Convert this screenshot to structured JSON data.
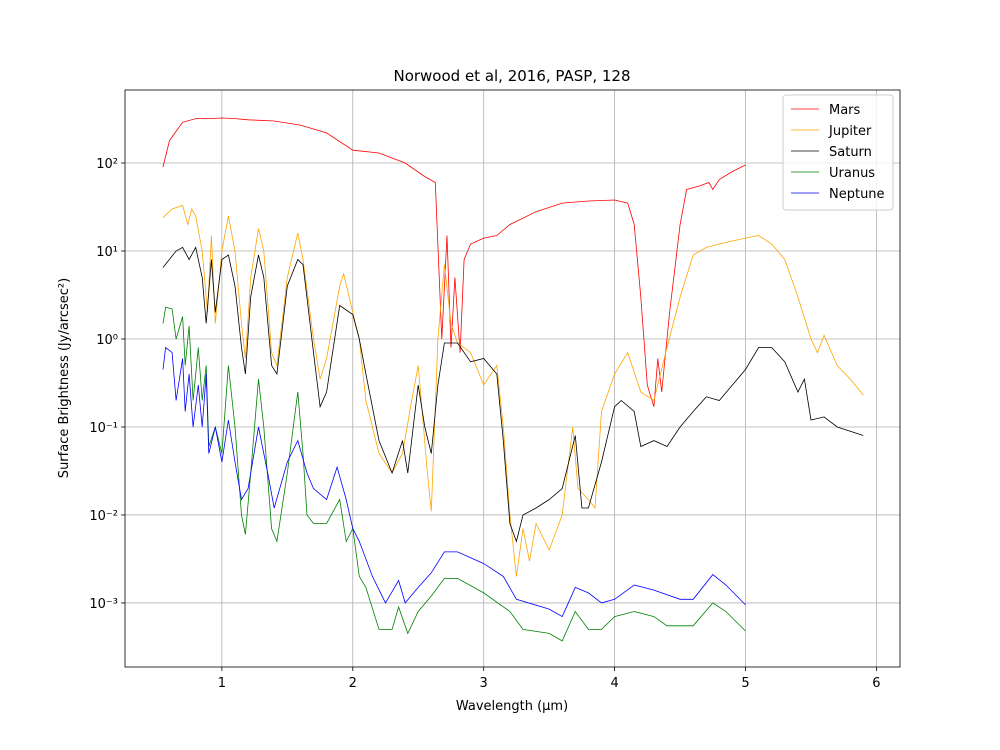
{
  "chart_data": {
    "type": "line",
    "title": "Norwood et al, 2016, PASP, 128",
    "xlabel": "Wavelength (μm)",
    "ylabel": "Surface Brightness (Jy/arcsec²)",
    "xlim": [
      0.26,
      6.18
    ],
    "xticks": [
      1,
      2,
      3,
      4,
      5,
      6
    ],
    "ylim": [
      0.000187,
      676
    ],
    "log_y": true,
    "yticks": [
      {
        "value": 0.001,
        "label": "10⁻³"
      },
      {
        "value": 0.01,
        "label": "10⁻²"
      },
      {
        "value": 0.1,
        "label": "10⁻¹"
      },
      {
        "value": 1,
        "label": "10⁰"
      },
      {
        "value": 10,
        "label": "10¹"
      },
      {
        "value": 100,
        "label": "10²"
      }
    ],
    "grid": true,
    "legend": "upper right",
    "series": [
      {
        "name": "Mars",
        "color": "#ff0000",
        "x": [
          0.55,
          0.6,
          0.7,
          0.8,
          0.9,
          1.0,
          1.1,
          1.2,
          1.4,
          1.6,
          1.8,
          2.0,
          2.2,
          2.4,
          2.55,
          2.63,
          2.68,
          2.72,
          2.75,
          2.78,
          2.82,
          2.85,
          2.9,
          3.0,
          3.1,
          3.2,
          3.4,
          3.6,
          3.8,
          4.0,
          4.1,
          4.15,
          4.2,
          4.25,
          4.3,
          4.33,
          4.36,
          4.42,
          4.5,
          4.55,
          4.65,
          4.72,
          4.75,
          4.8,
          4.9,
          5.0
        ],
        "values": [
          90,
          180,
          290,
          320,
          320,
          325,
          320,
          310,
          300,
          270,
          220,
          140,
          130,
          100,
          70,
          60,
          1,
          15,
          0.8,
          5,
          0.7,
          8,
          12,
          14,
          15,
          20,
          28,
          35,
          37,
          38,
          35,
          20,
          3,
          0.3,
          0.17,
          0.6,
          0.25,
          2,
          20,
          50,
          55,
          60,
          50,
          65,
          80,
          95
        ]
      },
      {
        "name": "Jupiter",
        "color": "#ffa500",
        "x": [
          0.55,
          0.62,
          0.7,
          0.74,
          0.77,
          0.8,
          0.85,
          0.89,
          0.92,
          0.95,
          1.0,
          1.05,
          1.1,
          1.15,
          1.18,
          1.22,
          1.28,
          1.32,
          1.38,
          1.42,
          1.5,
          1.58,
          1.62,
          1.7,
          1.75,
          1.8,
          1.9,
          1.93,
          2.0,
          2.05,
          2.1,
          2.2,
          2.3,
          2.38,
          2.45,
          2.5,
          2.53,
          2.57,
          2.6,
          2.65,
          2.7,
          2.75,
          2.8,
          2.9,
          3.0,
          3.1,
          3.15,
          3.2,
          3.25,
          3.3,
          3.35,
          3.4,
          3.5,
          3.6,
          3.68,
          3.72,
          3.8,
          3.85,
          3.9,
          4.0,
          4.1,
          4.2,
          4.3,
          4.4,
          4.5,
          4.6,
          4.7,
          4.8,
          4.9,
          5.0,
          5.1,
          5.2,
          5.3,
          5.4,
          5.5,
          5.55,
          5.6,
          5.7,
          5.8,
          5.9
        ],
        "values": [
          24,
          30,
          33,
          20,
          30,
          25,
          10,
          2,
          15,
          1.5,
          10,
          25,
          10,
          1.5,
          0.6,
          5,
          18,
          10,
          0.7,
          0.5,
          5,
          16,
          8,
          1,
          0.35,
          0.6,
          4,
          5.5,
          2,
          1,
          0.2,
          0.05,
          0.03,
          0.05,
          0.2,
          0.5,
          0.15,
          0.03,
          0.011,
          1,
          7,
          1.5,
          0.9,
          0.7,
          0.3,
          0.5,
          0.1,
          0.01,
          0.002,
          0.007,
          0.003,
          0.008,
          0.004,
          0.01,
          0.1,
          0.02,
          0.015,
          0.012,
          0.15,
          0.4,
          0.7,
          0.25,
          0.2,
          0.8,
          3,
          9,
          11,
          12,
          13,
          14,
          15,
          12,
          8,
          3,
          1.0,
          0.7,
          1.1,
          0.5,
          0.35,
          0.23
        ]
      },
      {
        "name": "Saturn",
        "color": "#000000",
        "x": [
          0.55,
          0.65,
          0.7,
          0.75,
          0.8,
          0.85,
          0.88,
          0.92,
          0.95,
          1.0,
          1.05,
          1.1,
          1.15,
          1.18,
          1.22,
          1.28,
          1.32,
          1.38,
          1.42,
          1.5,
          1.58,
          1.62,
          1.7,
          1.75,
          1.8,
          1.9,
          2.0,
          2.05,
          2.1,
          2.2,
          2.3,
          2.38,
          2.42,
          2.5,
          2.55,
          2.6,
          2.65,
          2.7,
          2.8,
          2.9,
          3.0,
          3.1,
          3.15,
          3.2,
          3.25,
          3.3,
          3.4,
          3.5,
          3.6,
          3.7,
          3.75,
          3.8,
          3.9,
          4.0,
          4.05,
          4.15,
          4.2,
          4.3,
          4.4,
          4.5,
          4.6,
          4.7,
          4.8,
          4.9,
          5.0,
          5.1,
          5.2,
          5.3,
          5.4,
          5.45,
          5.5,
          5.6,
          5.7,
          5.9
        ],
        "values": [
          6.5,
          10,
          11,
          8,
          11,
          5,
          1.5,
          8,
          2,
          8,
          9,
          4,
          0.8,
          0.4,
          3,
          9,
          5,
          0.5,
          0.4,
          4,
          8,
          7,
          0.7,
          0.17,
          0.25,
          2.4,
          1.9,
          1,
          0.4,
          0.07,
          0.03,
          0.07,
          0.03,
          0.3,
          0.1,
          0.05,
          0.3,
          0.9,
          0.9,
          0.55,
          0.6,
          0.4,
          0.07,
          0.008,
          0.005,
          0.01,
          0.012,
          0.015,
          0.02,
          0.08,
          0.012,
          0.012,
          0.04,
          0.17,
          0.2,
          0.15,
          0.06,
          0.07,
          0.06,
          0.1,
          0.15,
          0.22,
          0.2,
          0.3,
          0.45,
          0.8,
          0.8,
          0.55,
          0.25,
          0.35,
          0.12,
          0.13,
          0.1,
          0.08
        ]
      },
      {
        "name": "Uranus",
        "color": "#008000",
        "x": [
          0.55,
          0.57,
          0.62,
          0.65,
          0.7,
          0.72,
          0.75,
          0.78,
          0.82,
          0.85,
          0.88,
          0.9,
          0.95,
          1.0,
          1.05,
          1.1,
          1.15,
          1.18,
          1.22,
          1.28,
          1.32,
          1.38,
          1.42,
          1.5,
          1.58,
          1.62,
          1.65,
          1.7,
          1.8,
          1.9,
          1.95,
          2.0,
          2.05,
          2.1,
          2.2,
          2.3,
          2.35,
          2.42,
          2.5,
          2.6,
          2.7,
          2.8,
          3.0,
          3.2,
          3.3,
          3.5,
          3.6,
          3.7,
          3.8,
          3.9,
          4.0,
          4.15,
          4.3,
          4.4,
          4.6,
          4.75,
          4.85,
          5.0
        ],
        "values": [
          1.5,
          2.3,
          2.2,
          1,
          1.8,
          0.5,
          1.4,
          0.2,
          0.8,
          0.2,
          0.5,
          0.06,
          0.1,
          0.05,
          0.5,
          0.1,
          0.01,
          0.006,
          0.03,
          0.35,
          0.1,
          0.007,
          0.005,
          0.03,
          0.25,
          0.05,
          0.01,
          0.008,
          0.008,
          0.015,
          0.005,
          0.007,
          0.002,
          0.0015,
          0.0005,
          0.0005,
          0.0009,
          0.00045,
          0.0008,
          0.0012,
          0.0019,
          0.0019,
          0.0013,
          0.0008,
          0.0005,
          0.00045,
          0.00037,
          0.0008,
          0.0005,
          0.0005,
          0.0007,
          0.0008,
          0.0007,
          0.00055,
          0.00055,
          0.001,
          0.0008,
          0.00048
        ]
      },
      {
        "name": "Neptune",
        "color": "#0000ff",
        "x": [
          0.55,
          0.57,
          0.62,
          0.65,
          0.7,
          0.72,
          0.75,
          0.78,
          0.82,
          0.85,
          0.88,
          0.9,
          0.95,
          1.0,
          1.05,
          1.1,
          1.15,
          1.2,
          1.28,
          1.35,
          1.4,
          1.5,
          1.58,
          1.65,
          1.7,
          1.8,
          1.88,
          1.95,
          2.0,
          2.05,
          2.15,
          2.25,
          2.35,
          2.4,
          2.5,
          2.6,
          2.7,
          2.8,
          3.0,
          3.15,
          3.25,
          3.5,
          3.6,
          3.7,
          3.8,
          3.9,
          4.0,
          4.15,
          4.3,
          4.5,
          4.6,
          4.75,
          4.85,
          5.0
        ],
        "values": [
          0.45,
          0.8,
          0.7,
          0.2,
          0.6,
          0.15,
          0.4,
          0.1,
          0.3,
          0.1,
          0.4,
          0.05,
          0.1,
          0.04,
          0.12,
          0.04,
          0.015,
          0.02,
          0.1,
          0.03,
          0.012,
          0.04,
          0.07,
          0.03,
          0.02,
          0.015,
          0.035,
          0.015,
          0.007,
          0.005,
          0.002,
          0.001,
          0.0018,
          0.001,
          0.0015,
          0.0022,
          0.0038,
          0.0038,
          0.0028,
          0.002,
          0.0011,
          0.00085,
          0.0007,
          0.0015,
          0.0013,
          0.001,
          0.0011,
          0.0016,
          0.0014,
          0.0011,
          0.0011,
          0.0021,
          0.0016,
          0.00095
        ]
      }
    ]
  }
}
